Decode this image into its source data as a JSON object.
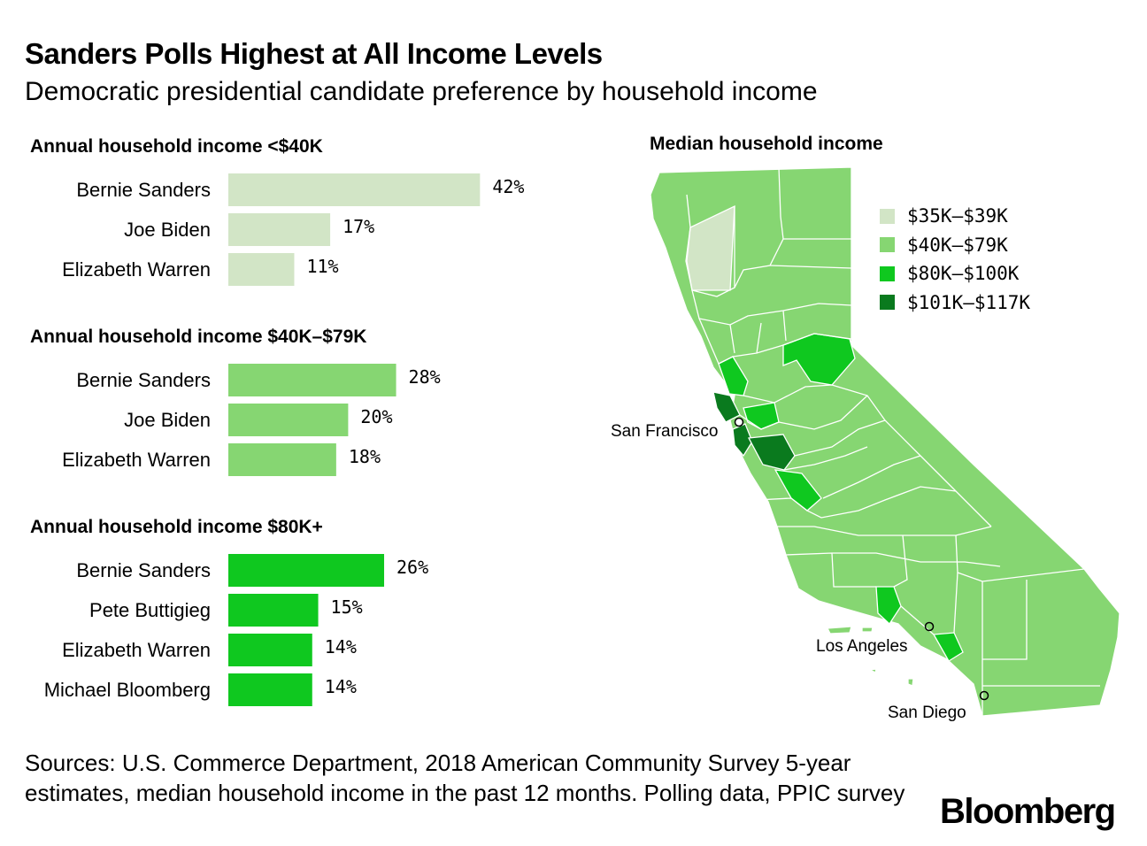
{
  "header": {
    "title": "Sanders Polls Highest at All Income Levels",
    "subtitle": "Democratic presidential candidate preference by household income"
  },
  "chart_data": [
    {
      "type": "bar",
      "orientation": "horizontal",
      "title": "Annual household income <$40K",
      "categories": [
        "Bernie Sanders",
        "Joe Biden",
        "Elizabeth Warren"
      ],
      "values": [
        42,
        17,
        11
      ],
      "value_labels": [
        "42%",
        "17%",
        "11%"
      ],
      "color": "#d2e5c6"
    },
    {
      "type": "bar",
      "orientation": "horizontal",
      "title": "Annual household income $40K–$79K",
      "categories": [
        "Bernie Sanders",
        "Joe Biden",
        "Elizabeth Warren"
      ],
      "values": [
        28,
        20,
        18
      ],
      "value_labels": [
        "28%",
        "20%",
        "18%"
      ],
      "color": "#86d672"
    },
    {
      "type": "bar",
      "orientation": "horizontal",
      "title": "Annual household income $80K+",
      "categories": [
        "Bernie Sanders",
        "Pete Buttigieg",
        "Elizabeth Warren",
        "Michael Bloomberg"
      ],
      "values": [
        26,
        15,
        14,
        14
      ],
      "value_labels": [
        "26%",
        "15%",
        "14%",
        "14%"
      ],
      "color": "#0fc81f"
    }
  ],
  "map": {
    "title": "Median household income",
    "legend": [
      {
        "label": "$35K–$39K",
        "color": "#d2e5c6"
      },
      {
        "label": "$40K–$79K",
        "color": "#86d672"
      },
      {
        "label": "$80K–$100K",
        "color": "#0fc81f"
      },
      {
        "label": "$101K–$117K",
        "color": "#0a7a1e"
      }
    ],
    "cities": [
      "San Francisco",
      "Los Angeles",
      "San Diego"
    ],
    "border_color": "#ffffff"
  },
  "footer": {
    "sources": "Sources: U.S. Commerce Department, 2018 American Community Survey 5-year estimates, median household income in the past 12 months. Polling data, PPIC survey",
    "logo": "Bloomberg"
  }
}
